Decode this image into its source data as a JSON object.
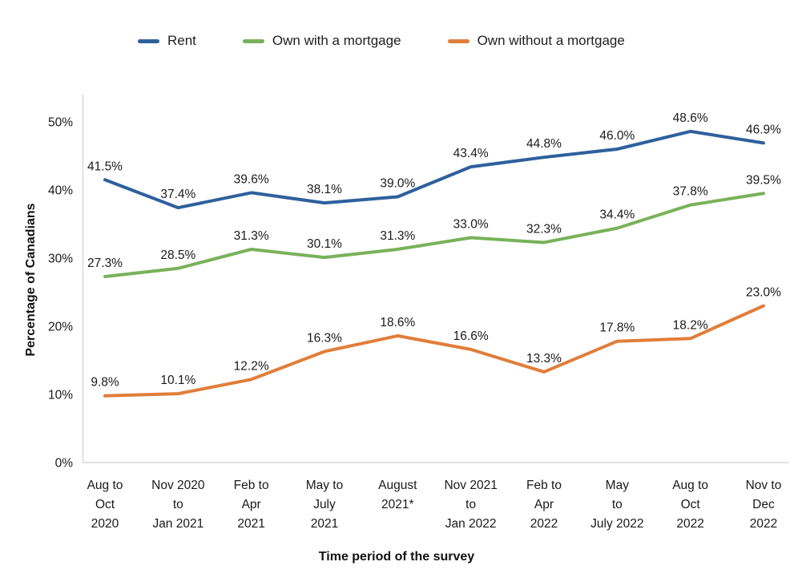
{
  "colors": {
    "axis_line": "#d9d9d9",
    "text": "#1a1a1a"
  },
  "chart_data": {
    "type": "line",
    "title": "",
    "xlabel": "Time period of the survey",
    "ylabel": "Percentage of Canadians",
    "ylim": [
      0,
      50
    ],
    "ytick_step": 10,
    "ytick_suffix": "%",
    "grid": false,
    "legend_position": "top",
    "categories": [
      "Aug to Oct 2020",
      "Nov 2020 to Jan 2021",
      "Feb to Apr 2021",
      "May to July 2021",
      "August 2021*",
      "Nov 2021 to Jan 2022",
      "Feb to Apr 2022",
      "May to July 2022",
      "Aug to Oct 2022",
      "Nov to Dec 2022"
    ],
    "category_tick_lines": [
      [
        "Aug to",
        "Oct",
        "2020"
      ],
      [
        "Nov 2020",
        "to",
        "Jan 2021"
      ],
      [
        "Feb to",
        "Apr",
        "2021"
      ],
      [
        "May to",
        "July",
        "2021"
      ],
      [
        "August",
        "2021*"
      ],
      [
        "Nov 2021",
        "to",
        "Jan 2022"
      ],
      [
        "Feb to",
        "Apr",
        "2022"
      ],
      [
        "May",
        "to",
        "July 2022"
      ],
      [
        "Aug to",
        "Oct",
        "2022"
      ],
      [
        "Nov to",
        "Dec",
        "2022"
      ]
    ],
    "series": [
      {
        "name": "Rent",
        "color": "#2e609c",
        "values": [
          41.5,
          37.4,
          39.6,
          38.1,
          39.0,
          43.4,
          44.8,
          46.0,
          48.6,
          46.9
        ]
      },
      {
        "name": "Own with a mortgage",
        "color": "#78b259",
        "values": [
          27.3,
          28.5,
          31.3,
          30.1,
          31.3,
          33.0,
          32.3,
          34.4,
          37.8,
          39.5
        ]
      },
      {
        "name": "Own without a mortgage",
        "color": "#e07e3a",
        "values": [
          9.8,
          10.1,
          12.2,
          16.3,
          18.6,
          16.6,
          13.3,
          17.8,
          18.2,
          23.0
        ]
      }
    ]
  }
}
